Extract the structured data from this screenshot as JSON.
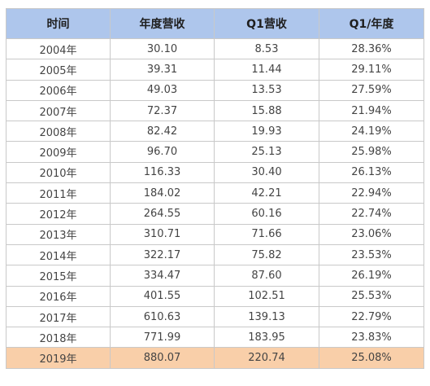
{
  "table": {
    "headers": [
      "时间",
      "年度营收",
      "Q1营收",
      "Q1/年度"
    ],
    "rows": [
      [
        "2004年",
        "30.10",
        "8.53",
        "28.36%"
      ],
      [
        "2005年",
        "39.31",
        "11.44",
        "29.11%"
      ],
      [
        "2006年",
        "49.03",
        "13.53",
        "27.59%"
      ],
      [
        "2007年",
        "72.37",
        "15.88",
        "21.94%"
      ],
      [
        "2008年",
        "82.42",
        "19.93",
        "24.19%"
      ],
      [
        "2009年",
        "96.70",
        "25.13",
        "25.98%"
      ],
      [
        "2010年",
        "116.33",
        "30.40",
        "26.13%"
      ],
      [
        "2011年",
        "184.02",
        "42.21",
        "22.94%"
      ],
      [
        "2012年",
        "264.55",
        "60.16",
        "22.74%"
      ],
      [
        "2013年",
        "310.71",
        "71.66",
        "23.06%"
      ],
      [
        "2014年",
        "322.17",
        "75.82",
        "23.53%"
      ],
      [
        "2015年",
        "334.47",
        "87.60",
        "26.19%"
      ],
      [
        "2016年",
        "401.55",
        "102.51",
        "25.53%"
      ],
      [
        "2017年",
        "610.63",
        "139.13",
        "22.79%"
      ],
      [
        "2018年",
        "771.99",
        "183.95",
        "23.83%"
      ],
      [
        "2019年",
        "880.07",
        "220.74",
        "25.08%"
      ]
    ],
    "highlighted_row": "2019年",
    "colors": {
      "header_bg": "#aec6ec",
      "highlight_bg": "#f9cfa9",
      "border": "#c9c9c9"
    }
  }
}
